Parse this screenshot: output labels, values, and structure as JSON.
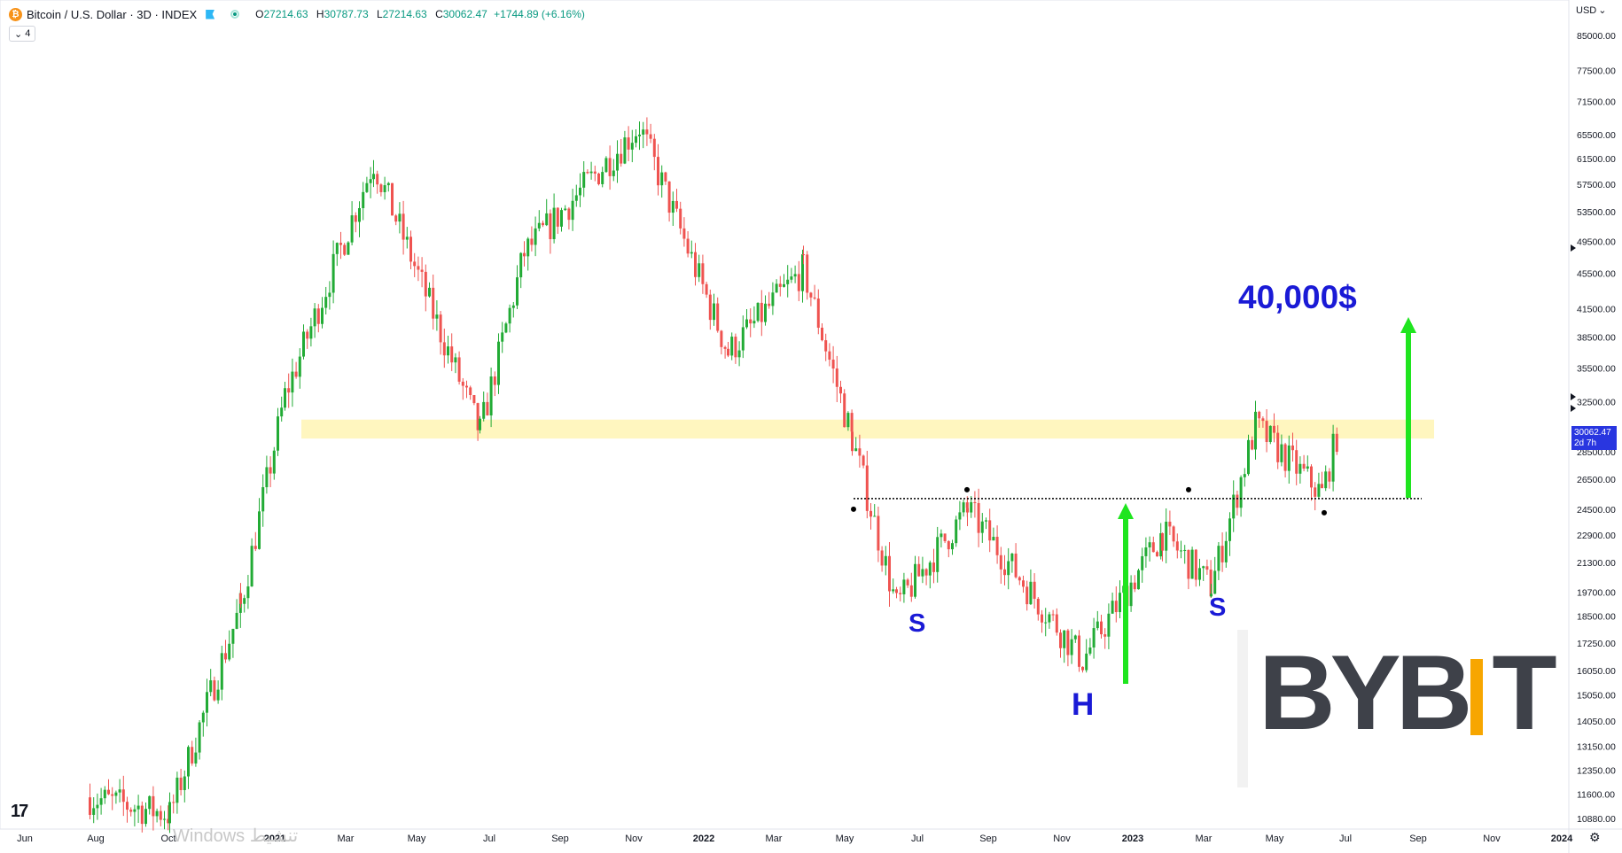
{
  "header": {
    "symbol": "Bitcoin / U.S. Dollar · 3D · INDEX",
    "coin_glyph": "₿",
    "open_label": "O",
    "open": "27214.63",
    "high_label": "H",
    "high": "30787.73",
    "low_label": "L",
    "low": "27214.63",
    "close_label": "C",
    "close": "30062.47",
    "change": "+1744.89 (+6.16%)",
    "indicators_count": "4"
  },
  "currency": "USD",
  "price_tag": {
    "price": "30062.47",
    "countdown": "2d 7h"
  },
  "annotations": {
    "target": "40,000$",
    "left_shoulder": "S",
    "head": "H",
    "right_shoulder": "S"
  },
  "branding": {
    "tradingview": "17",
    "bybit_left": "BYB",
    "bybit_right": "T"
  },
  "watermark": "Windows تنشيط",
  "colors": {
    "up": "#26a69a",
    "up_candle": "#22ab35",
    "down": "#ef5350",
    "zone": "#fff6bf",
    "annotation": "#1a1ad6",
    "arrow": "#1fe51f",
    "price_tag": "#2936e0"
  },
  "chart_data": {
    "type": "candlestick",
    "price_axis": [
      "85000.00",
      "77500.00",
      "71500.00",
      "65500.00",
      "61500.00",
      "57500.00",
      "53500.00",
      "49500.00",
      "45500.00",
      "41500.00",
      "38500.00",
      "35500.00",
      "32500.00",
      "28500.00",
      "26500.00",
      "24500.00",
      "22900.00",
      "21300.00",
      "19700.00",
      "18500.00",
      "17250.00",
      "16050.00",
      "15050.00",
      "14050.00",
      "13150.00",
      "12350.00",
      "11600.00",
      "10880.00"
    ],
    "time_axis": [
      "Jun",
      "Aug",
      "Oct",
      "2021",
      "Mar",
      "May",
      "Jul",
      "Sep",
      "Nov",
      "2022",
      "Mar",
      "May",
      "Jul",
      "Sep",
      "Nov",
      "2023",
      "Mar",
      "May",
      "Jul",
      "Sep",
      "Nov",
      "2024"
    ],
    "y_scale": "log",
    "series": [
      {
        "x": "2020-08",
        "close": 11500
      },
      {
        "x": "2020-10",
        "close": 11000
      },
      {
        "x": "2020-12",
        "close": 19000
      },
      {
        "x": "2021-01",
        "close": 33000
      },
      {
        "x": "2021-04",
        "close": 61000
      },
      {
        "x": "2021-07",
        "close": 30000
      },
      {
        "x": "2021-09",
        "close": 48000
      },
      {
        "x": "2021-11",
        "close": 67000
      },
      {
        "x": "2022-01",
        "close": 37000
      },
      {
        "x": "2022-03",
        "close": 46000
      },
      {
        "x": "2022-05",
        "close": 29500
      },
      {
        "x": "2022-06",
        "close": 19000
      },
      {
        "x": "2022-08",
        "close": 24500
      },
      {
        "x": "2022-11",
        "close": 16500
      },
      {
        "x": "2023-01",
        "close": 23000
      },
      {
        "x": "2023-03",
        "close": 20000
      },
      {
        "x": "2023-04",
        "close": 30500
      },
      {
        "x": "2023-06",
        "close": 25500
      },
      {
        "x": "2023-06-end",
        "close": 30062.47
      }
    ],
    "resistance_zone": [
      29500,
      31000
    ],
    "neckline": 25200,
    "target": 40000
  }
}
